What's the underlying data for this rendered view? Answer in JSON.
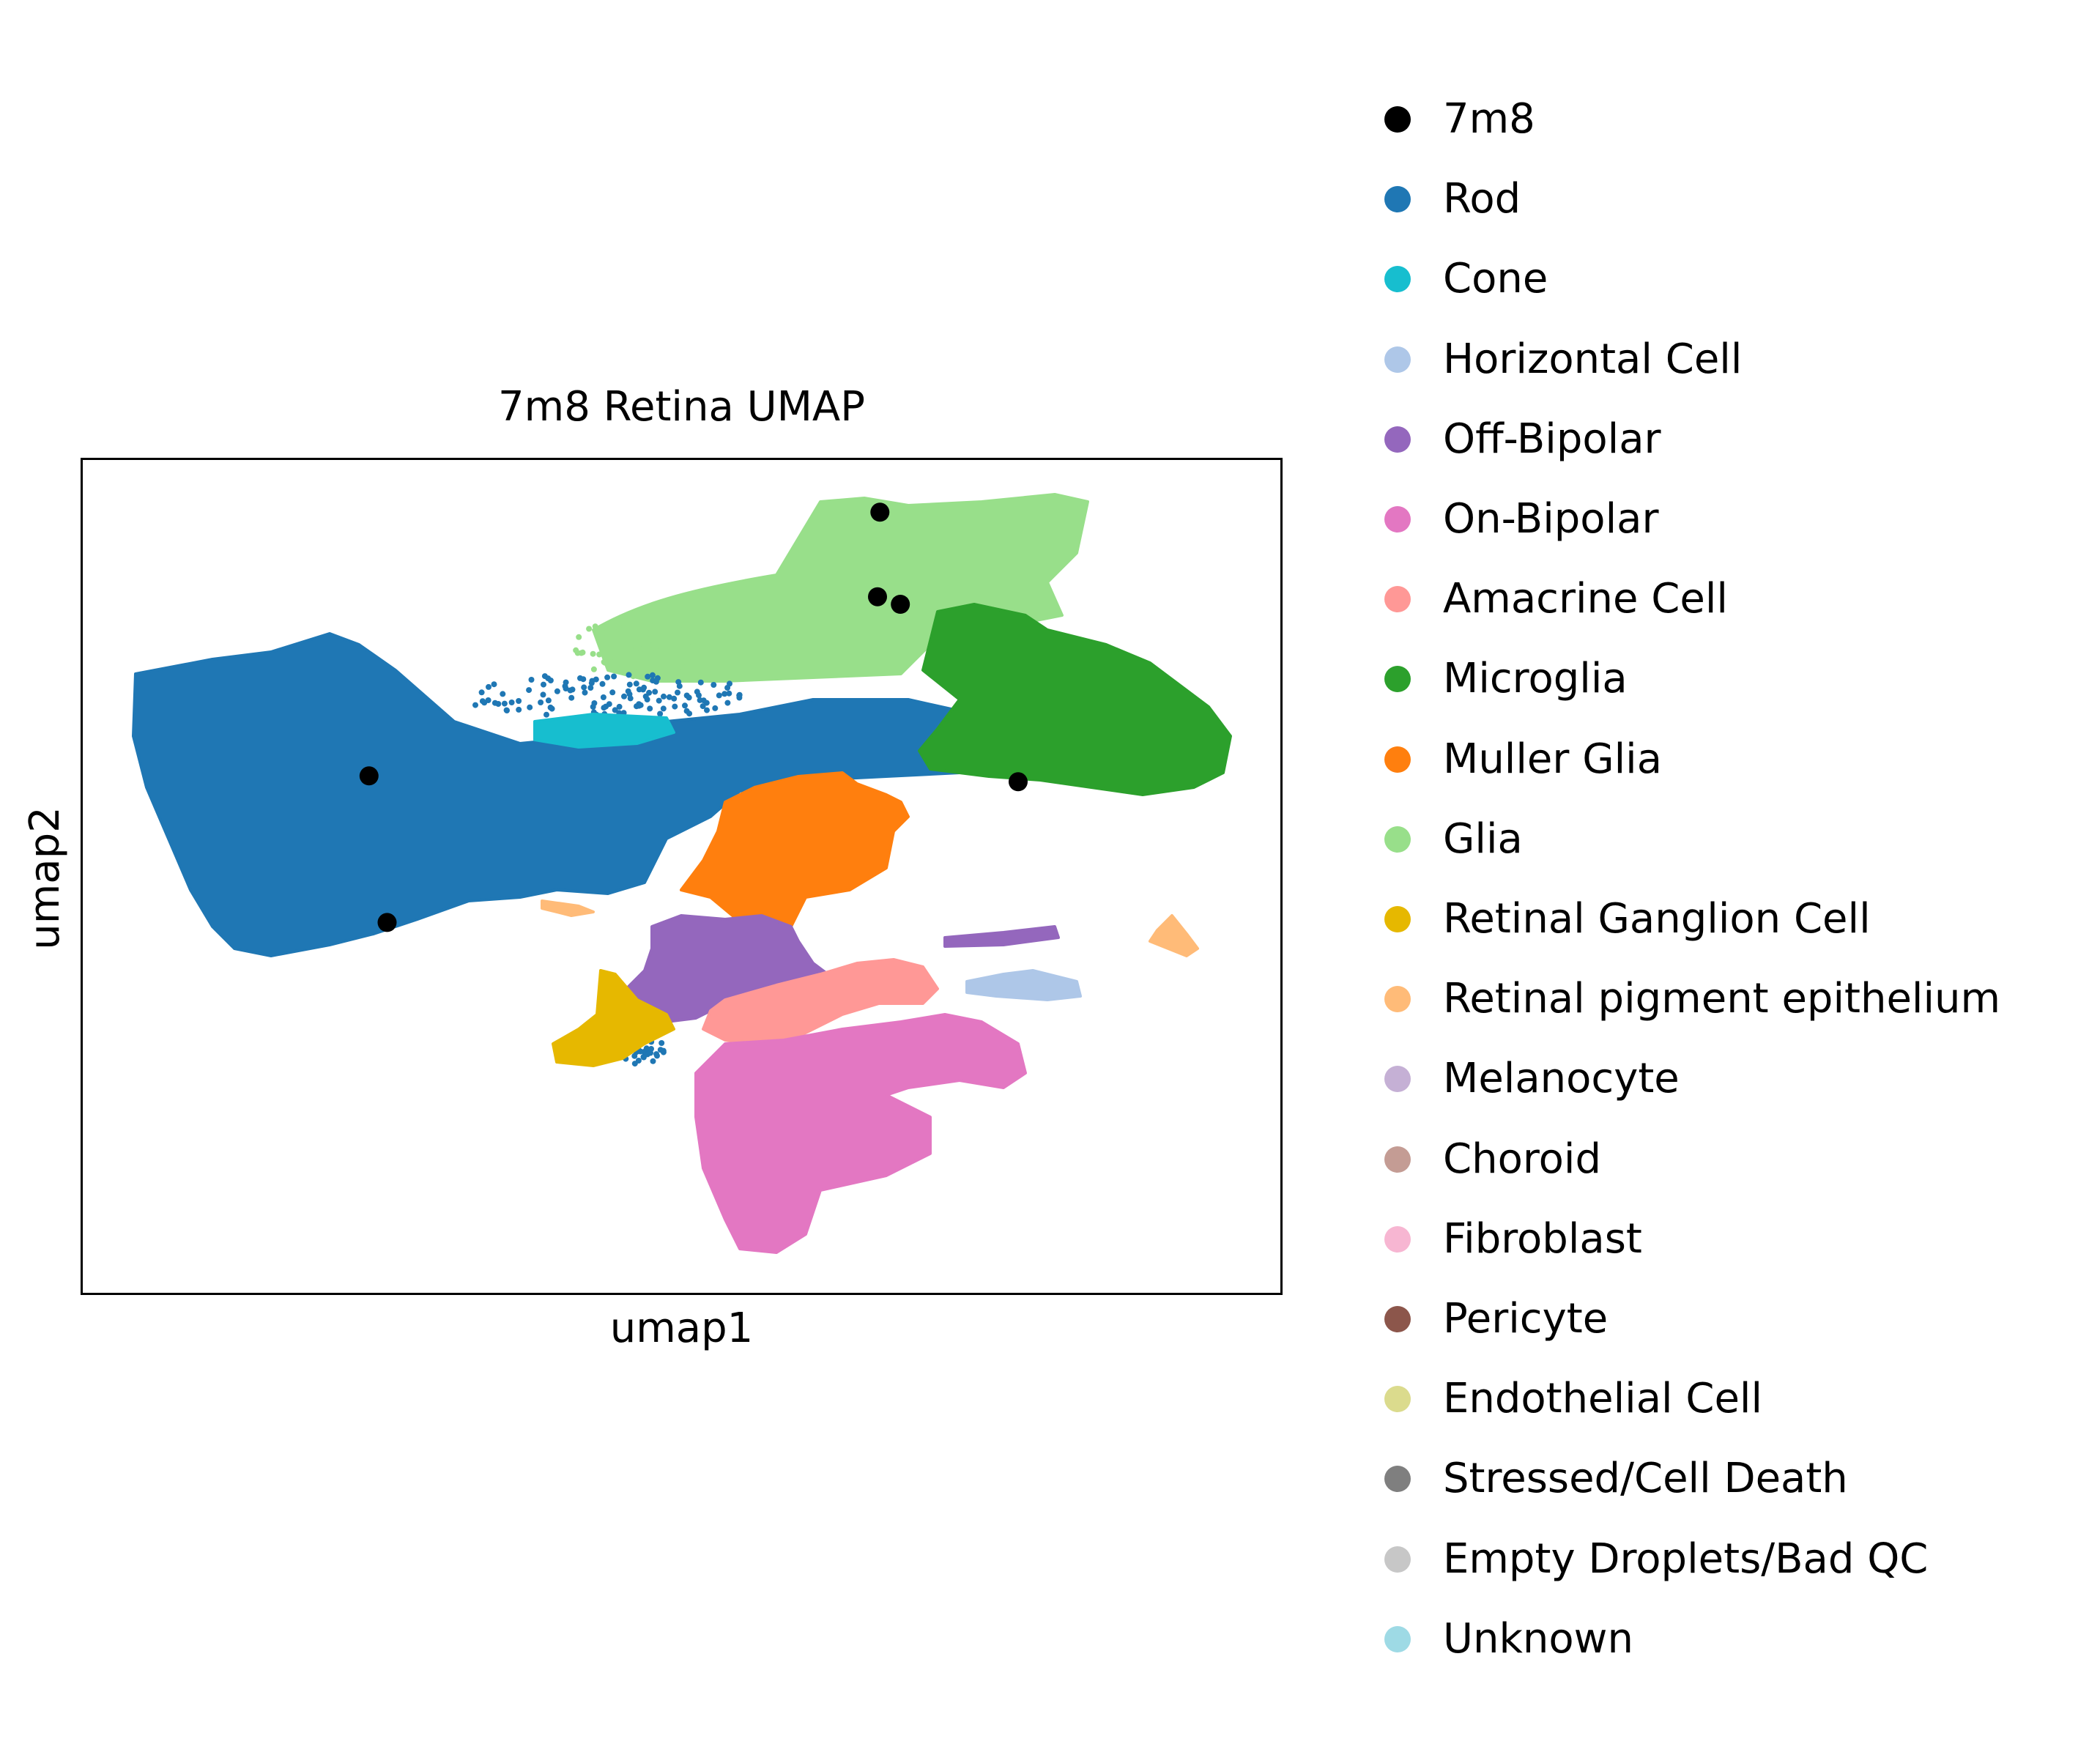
{
  "chart_data": {
    "type": "scatter",
    "title": "7m8 Retina UMAP",
    "xlabel": "umap1",
    "ylabel": "umap2",
    "grid": false,
    "legend_placement": "right, outside plot",
    "legend": [
      {
        "name": "7m8",
        "color": "#000000"
      },
      {
        "name": "Rod",
        "color": "#1f77b4"
      },
      {
        "name": "Cone",
        "color": "#17becf"
      },
      {
        "name": "Horizontal Cell",
        "color": "#aec7e8"
      },
      {
        "name": "Off-Bipolar",
        "color": "#9467bd"
      },
      {
        "name": "On-Bipolar",
        "color": "#e377c2"
      },
      {
        "name": "Amacrine Cell",
        "color": "#ff9896"
      },
      {
        "name": "Microglia",
        "color": "#2ca02c"
      },
      {
        "name": "Muller Glia",
        "color": "#ff7f0e"
      },
      {
        "name": "Glia",
        "color": "#98df8a"
      },
      {
        "name": "Retinal Ganglion Cell",
        "color": "#e6b800"
      },
      {
        "name": "Retinal pigment epithelium",
        "color": "#ffbb78"
      },
      {
        "name": "Melanocyte",
        "color": "#c5b0d5"
      },
      {
        "name": "Choroid",
        "color": "#c49c94"
      },
      {
        "name": "Fibroblast",
        "color": "#f7b6d2"
      },
      {
        "name": "Pericyte",
        "color": "#8c564b"
      },
      {
        "name": "Endothelial Cell",
        "color": "#dbdb8d"
      },
      {
        "name": "Stressed/Cell Death",
        "color": "#7f7f7f"
      },
      {
        "name": "Empty Droplets/Bad QC",
        "color": "#c7c7c7"
      },
      {
        "name": "Unknown",
        "color": "#9edae5"
      }
    ],
    "highlight_points_7m8": [
      {
        "x": 0.24,
        "y": 0.62
      },
      {
        "x": 0.255,
        "y": 0.445
      },
      {
        "x": 0.665,
        "y": 0.935
      },
      {
        "x": 0.663,
        "y": 0.834
      },
      {
        "x": 0.682,
        "y": 0.825
      },
      {
        "x": 0.78,
        "y": 0.613
      }
    ],
    "note_axes": "axes have no ticks or tick labels"
  }
}
